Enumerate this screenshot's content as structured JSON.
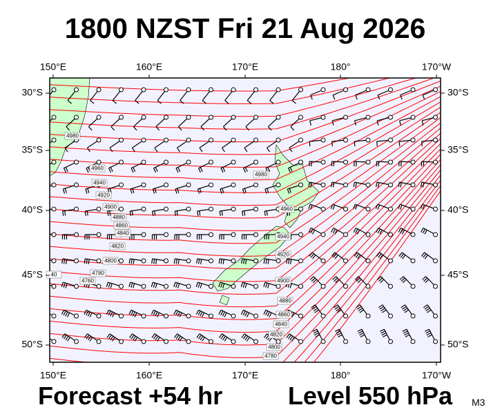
{
  "header": {
    "title": "1800 NZST Fri 21 Aug 2026"
  },
  "axes": {
    "longitude_labels": [
      "150°E",
      "160°E",
      "170°E",
      "180°",
      "170°W"
    ],
    "latitude_labels": [
      "30°S",
      "35°S",
      "40°S",
      "45°S",
      "50°S"
    ]
  },
  "contour_labels": [
    "4980",
    "4960",
    "4940",
    "4920",
    "4900",
    "4880",
    "4860",
    "4840",
    "4820",
    "4800",
    "4780",
    "4760",
    "40",
    "4980",
    "4960",
    "4940",
    "4920",
    "4900",
    "4880",
    "4860",
    "4840",
    "4820",
    "4800",
    "4780"
  ],
  "footer": {
    "forecast": "Forecast +54 hr",
    "level": "Level 550 hPa",
    "model": "M3"
  }
}
